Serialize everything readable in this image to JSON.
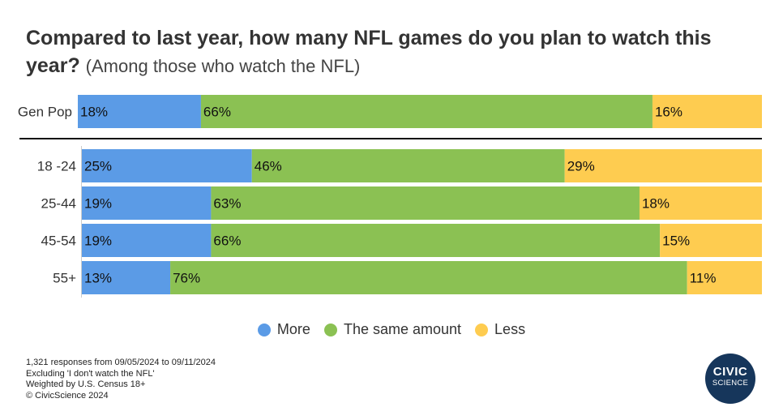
{
  "title": {
    "main": "Compared to last year, how many NFL games do you plan to watch this year?",
    "sub": "(Among those who watch the NFL)"
  },
  "chart_data": {
    "type": "bar",
    "orientation": "horizontal",
    "stacked": true,
    "percent": true,
    "categories": [
      "Gen Pop",
      "18 -24",
      "25-44",
      "45-54",
      "55+"
    ],
    "series": [
      {
        "name": "More",
        "values": [
          18,
          25,
          19,
          19,
          13
        ],
        "color": "#5b9be6"
      },
      {
        "name": "The same amount",
        "values": [
          66,
          46,
          63,
          66,
          76
        ],
        "color": "#8bc153"
      },
      {
        "name": "Less",
        "values": [
          16,
          29,
          18,
          15,
          11
        ],
        "color": "#fecc50"
      }
    ],
    "data_labels": [
      [
        "18%",
        "66%",
        "16%"
      ],
      [
        "25%",
        "46%",
        "29%"
      ],
      [
        "19%",
        "63%",
        "18%"
      ],
      [
        "19%",
        "66%",
        "15%"
      ],
      [
        "13%",
        "76%",
        "11%"
      ]
    ],
    "legend": "bottom",
    "grid": false
  },
  "footnotes": [
    "1,321 responses from 09/05/2024 to 09/11/2024",
    "Excluding 'I don't watch the NFL'",
    "Weighted by U.S. Census 18+",
    "© CivicScience 2024"
  ],
  "logo": {
    "line1": "CIVIC",
    "line2": "SCIENCE"
  }
}
